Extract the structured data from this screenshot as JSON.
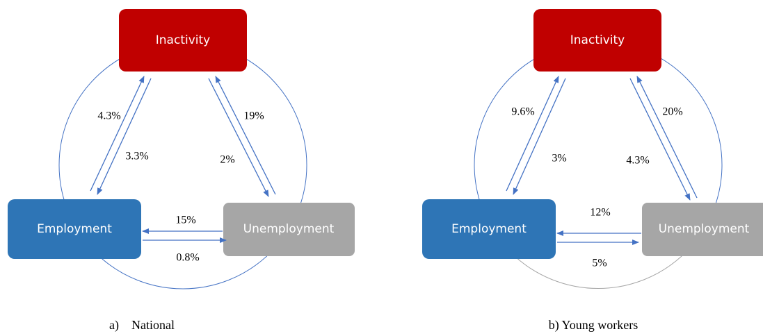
{
  "panels": [
    {
      "caption": "a)    National",
      "nodes": {
        "inactivity": "Inactivity",
        "employment": "Employment",
        "unemployment": "Unemployment"
      },
      "edges": {
        "employment_to_inactivity": "4.3%",
        "inactivity_to_employment": "3.3%",
        "unemployment_to_inactivity": "19%",
        "inactivity_to_unemployment": "2%",
        "unemployment_to_employment": "15%",
        "employment_to_unemployment": "0.8%"
      }
    },
    {
      "caption": "b) Young workers",
      "nodes": {
        "inactivity": "Inactivity",
        "employment": "Employment",
        "unemployment": "Unemployment"
      },
      "edges": {
        "employment_to_inactivity": "9.6%",
        "inactivity_to_employment": "3%",
        "unemployment_to_inactivity": "20%",
        "inactivity_to_unemployment": "4.3%",
        "unemployment_to_employment": "12%",
        "employment_to_unemployment": "5%"
      }
    }
  ]
}
